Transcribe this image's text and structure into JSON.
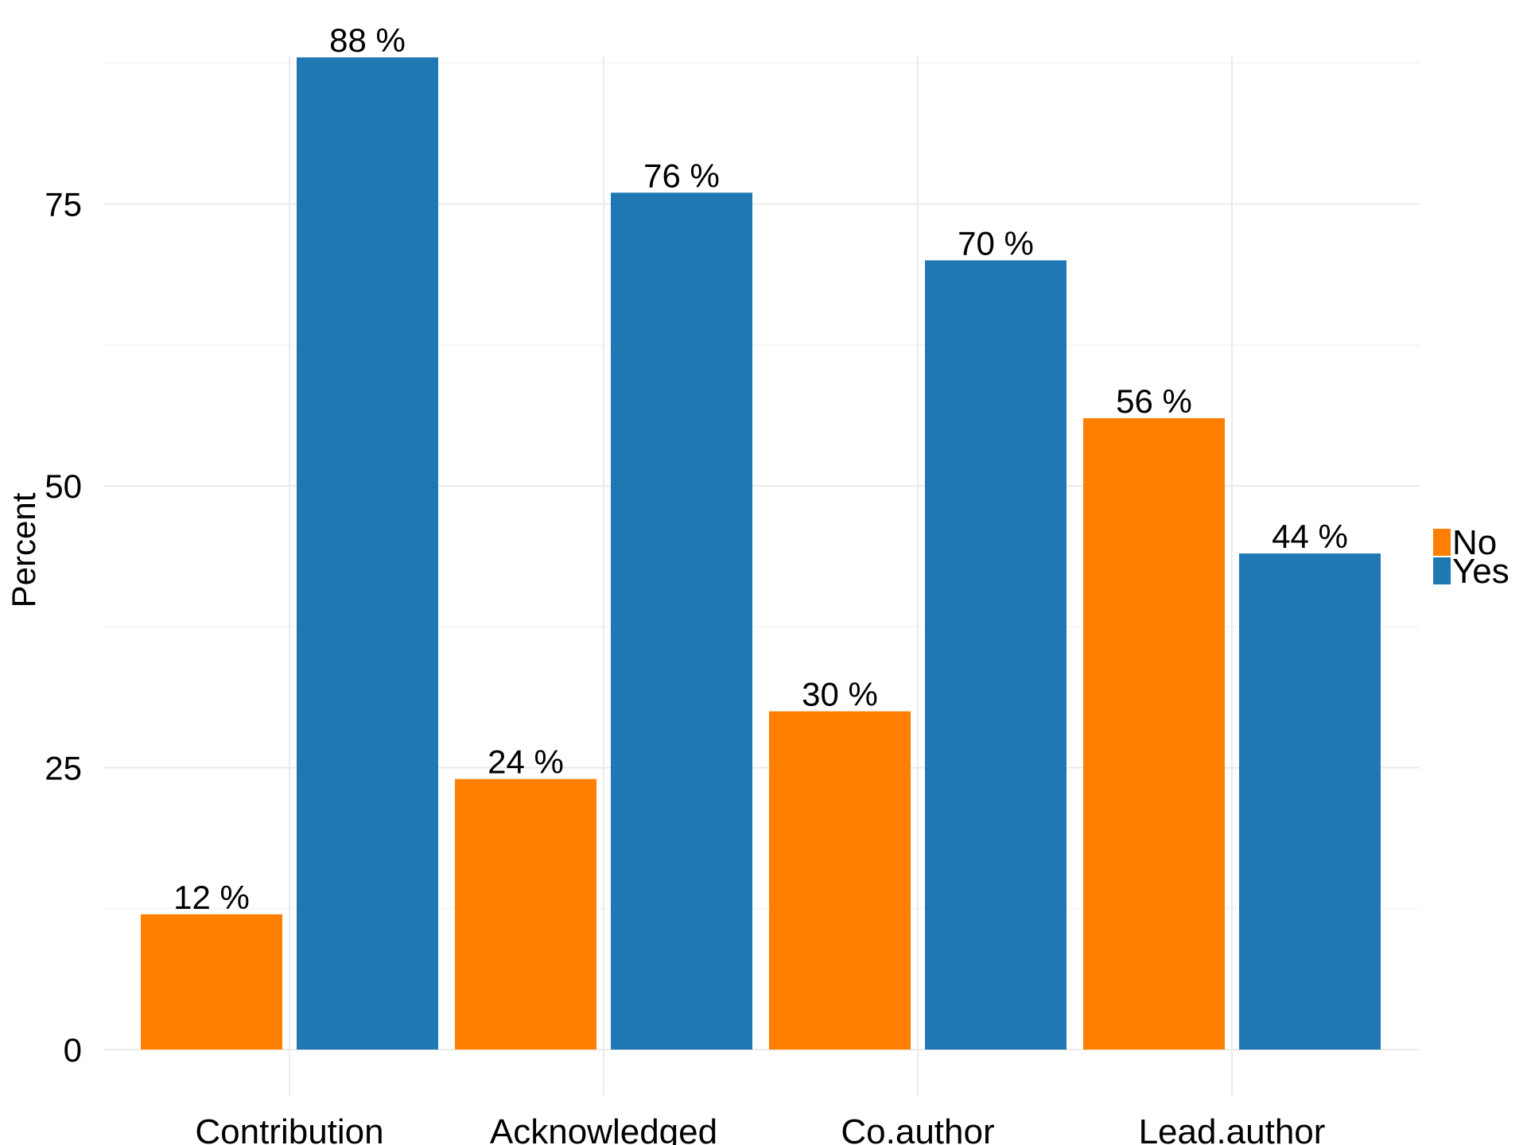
{
  "chart_data": {
    "type": "bar",
    "title": "",
    "xlabel": "",
    "ylabel": "Percent",
    "ylim": [
      0,
      92
    ],
    "yticks": [
      0,
      25,
      50,
      75
    ],
    "grid": true,
    "legend_position": "right",
    "categories": [
      "Contribution",
      "Acknowledged",
      "Co.author",
      "Lead.author"
    ],
    "series": [
      {
        "name": "No",
        "color": "#ff7f00",
        "values": [
          12,
          24,
          30,
          56
        ],
        "labels": [
          "12 %",
          "24 %",
          "30 %",
          "56 %"
        ]
      },
      {
        "name": "Yes",
        "color": "#1f78b4",
        "values": [
          88,
          76,
          70,
          44
        ],
        "labels": [
          "88 %",
          "76 %",
          "70 %",
          "44 %"
        ]
      }
    ]
  }
}
